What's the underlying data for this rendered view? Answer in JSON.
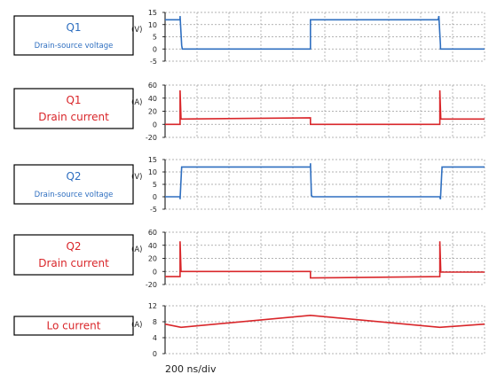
{
  "time_scale_label": "200 ns/div",
  "colors": {
    "blue": "#2f6fc0",
    "red": "#d9262a",
    "grid": "#9a9a9a",
    "axis": "#000000"
  },
  "chart_data": [
    {
      "type": "line",
      "label_lines": [
        "Q1",
        "Drain-source voltage"
      ],
      "label_color": "blue",
      "unit": "(V)",
      "yticks": [
        15,
        10,
        5,
        0,
        -5
      ],
      "ylim": [
        -5,
        15
      ],
      "xlim": [
        0,
        10
      ],
      "xlabel": "",
      "ylabel": "",
      "series": [
        {
          "color": "blue",
          "x": [
            0,
            0.47,
            0.47,
            0.52,
            0.54,
            1.4,
            4.55,
            4.55,
            4.6,
            8.55,
            8.57,
            8.62,
            8.62,
            10
          ],
          "y": [
            12,
            12,
            13.5,
            1.5,
            0,
            0,
            0,
            12,
            12,
            12,
            13.5,
            1.5,
            0,
            0
          ]
        }
      ]
    },
    {
      "type": "line",
      "label_lines": [
        "Q1",
        "Drain current"
      ],
      "label_color": "red",
      "unit": "(A)",
      "yticks": [
        60,
        40,
        20,
        0,
        -20
      ],
      "ylim": [
        -20,
        60
      ],
      "xlim": [
        0,
        10
      ],
      "xlabel": "",
      "ylabel": "",
      "series": [
        {
          "color": "red",
          "x": [
            0,
            0.47,
            0.47,
            0.5,
            0.5,
            4.55,
            4.55,
            8.6,
            8.6,
            8.63,
            8.63,
            10
          ],
          "y": [
            0,
            0,
            52,
            8,
            8,
            10,
            0,
            0,
            52,
            8,
            8,
            8
          ]
        }
      ]
    },
    {
      "type": "line",
      "label_lines": [
        "Q2",
        "Drain-source voltage"
      ],
      "label_color": "blue",
      "unit": "(V)",
      "yticks": [
        15,
        10,
        5,
        0,
        -5
      ],
      "ylim": [
        -5,
        15
      ],
      "xlim": [
        0,
        10
      ],
      "xlabel": "",
      "ylabel": "",
      "series": [
        {
          "color": "blue",
          "x": [
            0,
            0.47,
            0.47,
            0.52,
            0.55,
            4.55,
            4.55,
            4.58,
            4.62,
            8.6,
            8.62,
            8.67,
            8.7,
            10
          ],
          "y": [
            0,
            0,
            -1,
            12,
            12,
            12,
            13.5,
            0.5,
            0,
            0,
            -1,
            12,
            12,
            12
          ]
        }
      ]
    },
    {
      "type": "line",
      "label_lines": [
        "Q2",
        "Drain current"
      ],
      "label_color": "red",
      "unit": "(A)",
      "yticks": [
        60,
        40,
        20,
        0,
        -20
      ],
      "ylim": [
        -20,
        60
      ],
      "xlim": [
        0,
        10
      ],
      "xlabel": "",
      "ylabel": "",
      "series": [
        {
          "color": "red",
          "x": [
            0,
            0.47,
            0.47,
            0.5,
            0.5,
            4.55,
            4.55,
            8.6,
            8.6,
            8.63,
            8.63,
            10
          ],
          "y": [
            -8,
            -8,
            46,
            0,
            0,
            0,
            -10,
            -8,
            46,
            -1,
            -1,
            -1
          ]
        }
      ]
    },
    {
      "type": "line",
      "label_lines": [
        "Lo current"
      ],
      "label_color": "red",
      "unit": "(A)",
      "yticks": [
        12,
        8,
        4,
        0
      ],
      "ylim": [
        0,
        12
      ],
      "xlim": [
        0,
        10
      ],
      "xlabel": "",
      "ylabel": "",
      "series": [
        {
          "color": "red",
          "x": [
            0,
            0.5,
            4.55,
            8.6,
            10
          ],
          "y": [
            7.4,
            6.6,
            9.6,
            6.6,
            7.4
          ]
        }
      ]
    }
  ]
}
